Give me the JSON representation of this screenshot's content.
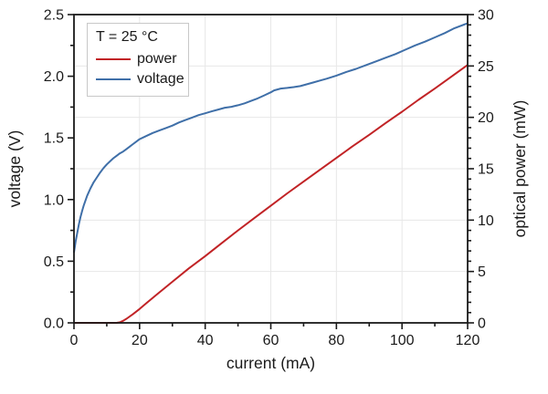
{
  "figure": {
    "background": "#ffffff",
    "frame_color": "#1a1a1a",
    "grid_color": "#e7e7e7"
  },
  "legend": {
    "title": "T = 25 °C",
    "position": "top-left-inside",
    "items": [
      {
        "label": "power",
        "color": "#c12326"
      },
      {
        "label": "voltage",
        "color": "#3f6fa8"
      }
    ]
  },
  "chart_data": {
    "type": "line",
    "title": "",
    "grid": {
      "vertical": "x-major",
      "horizontal": "right-axis-major",
      "on": true
    },
    "x_axis": {
      "label": "current (mA)",
      "min": 0,
      "max": 120,
      "major_ticks": [
        0,
        20,
        40,
        60,
        80,
        100,
        120
      ],
      "major_tick_labels": [
        "0",
        "20",
        "40",
        "60",
        "80",
        "100",
        "120"
      ],
      "minor_ticks": [
        10,
        30,
        50,
        70,
        90,
        110
      ]
    },
    "y_left_axis": {
      "label": "voltage (V)",
      "min": 0.0,
      "max": 2.5,
      "major_ticks": [
        0.0,
        0.5,
        1.0,
        1.5,
        2.0,
        2.5
      ],
      "major_tick_labels": [
        "0.0",
        "0.5",
        "1.0",
        "1.5",
        "2.0",
        "2.5"
      ],
      "minor_ticks": [
        0.25,
        0.75,
        1.25,
        1.75,
        2.25
      ]
    },
    "y_right_axis": {
      "label": "optical power (mW)",
      "min": 0,
      "max": 30,
      "major_ticks": [
        0,
        5,
        10,
        15,
        20,
        25,
        30
      ],
      "major_tick_labels": [
        "0",
        "5",
        "10",
        "15",
        "20",
        "25",
        "30"
      ],
      "minor_ticks": [
        1,
        2,
        3,
        4,
        6,
        7,
        8,
        9,
        11,
        12,
        13,
        14,
        16,
        17,
        18,
        19,
        21,
        22,
        23,
        24,
        26,
        27,
        28,
        29
      ]
    },
    "series": [
      {
        "name": "power",
        "axis": "right",
        "color": "#c12326",
        "line_width": 2,
        "points": [
          [
            0,
            0
          ],
          [
            5,
            0
          ],
          [
            10,
            0
          ],
          [
            13,
            0
          ],
          [
            14,
            0.05
          ],
          [
            15,
            0.2
          ],
          [
            16,
            0.4
          ],
          [
            18,
            0.85
          ],
          [
            20,
            1.35
          ],
          [
            22,
            1.9
          ],
          [
            25,
            2.7
          ],
          [
            30,
            4.0
          ],
          [
            35,
            5.3
          ],
          [
            40,
            6.5
          ],
          [
            45,
            7.75
          ],
          [
            50,
            9.0
          ],
          [
            55,
            10.2
          ],
          [
            60,
            11.4
          ],
          [
            65,
            12.6
          ],
          [
            70,
            13.75
          ],
          [
            75,
            14.9
          ],
          [
            80,
            16.05
          ],
          [
            85,
            17.2
          ],
          [
            90,
            18.3
          ],
          [
            95,
            19.45
          ],
          [
            100,
            20.55
          ],
          [
            105,
            21.7
          ],
          [
            110,
            22.8
          ],
          [
            115,
            23.95
          ],
          [
            120,
            25.1
          ]
        ]
      },
      {
        "name": "voltage",
        "axis": "left",
        "color": "#3f6fa8",
        "line_width": 2,
        "points": [
          [
            0,
            0.57
          ],
          [
            0.5,
            0.66
          ],
          [
            1,
            0.73
          ],
          [
            1.5,
            0.8
          ],
          [
            2,
            0.86
          ],
          [
            2.5,
            0.91
          ],
          [
            3,
            0.955
          ],
          [
            4,
            1.03
          ],
          [
            5,
            1.09
          ],
          [
            6,
            1.14
          ],
          [
            7,
            1.18
          ],
          [
            8,
            1.22
          ],
          [
            9,
            1.255
          ],
          [
            10,
            1.285
          ],
          [
            11,
            1.31
          ],
          [
            12,
            1.335
          ],
          [
            13,
            1.355
          ],
          [
            14,
            1.375
          ],
          [
            15,
            1.39
          ],
          [
            16,
            1.41
          ],
          [
            17,
            1.43
          ],
          [
            18,
            1.45
          ],
          [
            19,
            1.47
          ],
          [
            20,
            1.49
          ],
          [
            22,
            1.515
          ],
          [
            24,
            1.54
          ],
          [
            26,
            1.56
          ],
          [
            28,
            1.58
          ],
          [
            30,
            1.6
          ],
          [
            32,
            1.625
          ],
          [
            34,
            1.645
          ],
          [
            36,
            1.665
          ],
          [
            38,
            1.685
          ],
          [
            40,
            1.7
          ],
          [
            42,
            1.715
          ],
          [
            44,
            1.73
          ],
          [
            46,
            1.745
          ],
          [
            48,
            1.752
          ],
          [
            50,
            1.765
          ],
          [
            52,
            1.78
          ],
          [
            54,
            1.8
          ],
          [
            56,
            1.82
          ],
          [
            58,
            1.845
          ],
          [
            60,
            1.87
          ],
          [
            61,
            1.885
          ],
          [
            63,
            1.9
          ],
          [
            65,
            1.905
          ],
          [
            67,
            1.912
          ],
          [
            69,
            1.92
          ],
          [
            71,
            1.935
          ],
          [
            73,
            1.95
          ],
          [
            75,
            1.965
          ],
          [
            77,
            1.98
          ],
          [
            80,
            2.005
          ],
          [
            83,
            2.035
          ],
          [
            86,
            2.06
          ],
          [
            89,
            2.09
          ],
          [
            92,
            2.12
          ],
          [
            95,
            2.15
          ],
          [
            98,
            2.18
          ],
          [
            101,
            2.215
          ],
          [
            104,
            2.25
          ],
          [
            107,
            2.28
          ],
          [
            110,
            2.315
          ],
          [
            113,
            2.35
          ],
          [
            116,
            2.39
          ],
          [
            120,
            2.43
          ]
        ]
      }
    ]
  }
}
